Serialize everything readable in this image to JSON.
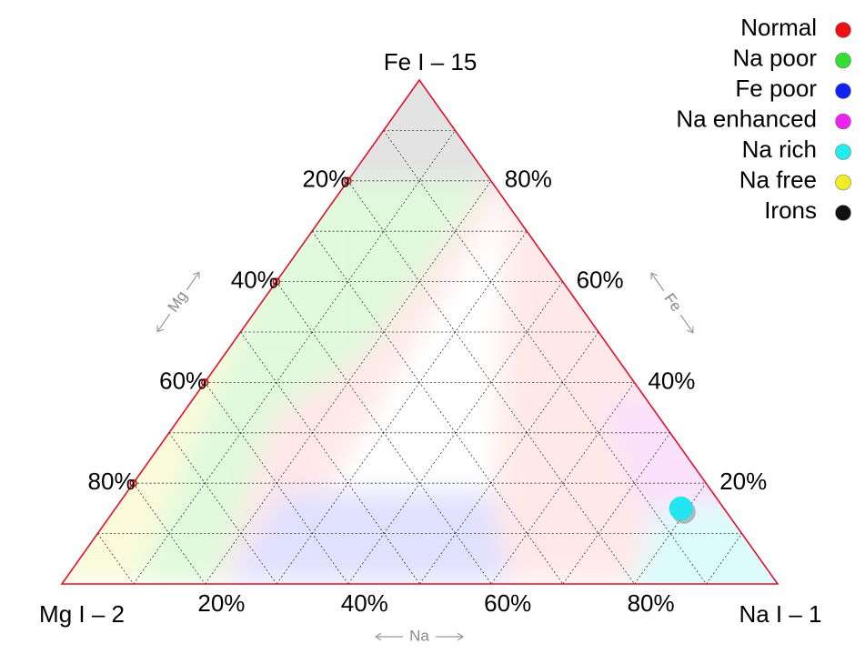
{
  "chart_data": {
    "type": "ternary",
    "vertices": {
      "top": "Fe I – 15",
      "left": "Mg I – 2",
      "right": "Na I – 1"
    },
    "axes": {
      "mg": {
        "name": "Mg",
        "ticks": [
          {
            "value": 20,
            "label": "20%"
          },
          {
            "value": 40,
            "label": "40%"
          },
          {
            "value": 60,
            "label": "60%"
          },
          {
            "value": 80,
            "label": "80%"
          }
        ],
        "gridlines": [
          10,
          20,
          30,
          40,
          50,
          60,
          70,
          80,
          90
        ]
      },
      "fe": {
        "name": "Fe",
        "ticks": [
          {
            "value": 20,
            "label": "20%"
          },
          {
            "value": 40,
            "label": "40%"
          },
          {
            "value": 60,
            "label": "60%"
          },
          {
            "value": 80,
            "label": "80%"
          }
        ],
        "gridlines": [
          10,
          20,
          30,
          40,
          50,
          60,
          70,
          80,
          90
        ]
      },
      "na": {
        "name": "Na",
        "ticks": [
          {
            "value": 20,
            "label": "20%"
          },
          {
            "value": 40,
            "label": "40%"
          },
          {
            "value": 60,
            "label": "60%"
          },
          {
            "value": 80,
            "label": "80%"
          }
        ],
        "gridlines": [
          10,
          20,
          30,
          40,
          50,
          60,
          70,
          80,
          90
        ]
      }
    },
    "legend": [
      {
        "name": "Normal",
        "color": "#ee1111"
      },
      {
        "name": "Na poor",
        "color": "#33dd33"
      },
      {
        "name": "Fe poor",
        "color": "#1122ee"
      },
      {
        "name": "Na enhanced",
        "color": "#ee22ee"
      },
      {
        "name": "Na rich",
        "color": "#22eeee"
      },
      {
        "name": "Na free",
        "color": "#eeee22"
      },
      {
        "name": "Irons",
        "color": "#111111"
      }
    ],
    "points": [
      {
        "fe": 15,
        "mg": 6,
        "na": 79,
        "color": "#22e5ef"
      }
    ]
  }
}
